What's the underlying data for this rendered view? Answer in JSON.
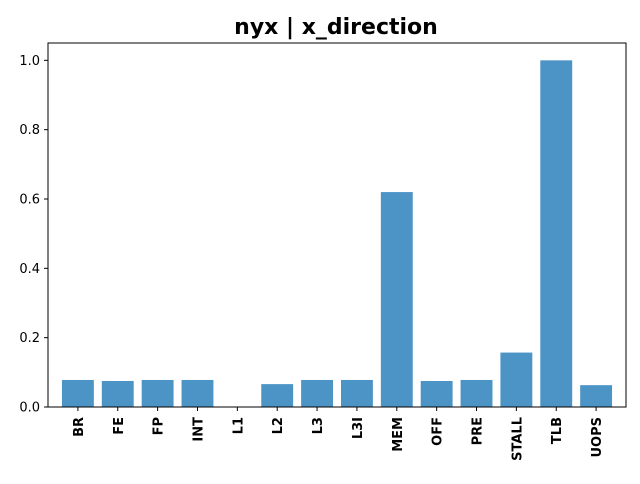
{
  "chart_data": {
    "type": "bar",
    "title": "nyx | x_direction",
    "xlabel": "",
    "ylabel": "",
    "categories": [
      "BR",
      "FE",
      "FP",
      "INT",
      "L1",
      "L2",
      "L3",
      "L3I",
      "MEM",
      "OFF",
      "PRE",
      "STALL",
      "TLB",
      "UOPS"
    ],
    "values": [
      0.078,
      0.075,
      0.078,
      0.078,
      0.0,
      0.066,
      0.078,
      0.078,
      0.62,
      0.075,
      0.078,
      0.157,
      1.0,
      0.063
    ],
    "ylim": [
      0,
      1.05
    ],
    "yticks": [
      0.0,
      0.2,
      0.4,
      0.6,
      0.8,
      1.0
    ],
    "ytick_labels": [
      "0.0",
      "0.2",
      "0.4",
      "0.6",
      "0.8",
      "1.0"
    ],
    "bar_color": "#4d94c6",
    "grid": false,
    "legend": "none"
  }
}
